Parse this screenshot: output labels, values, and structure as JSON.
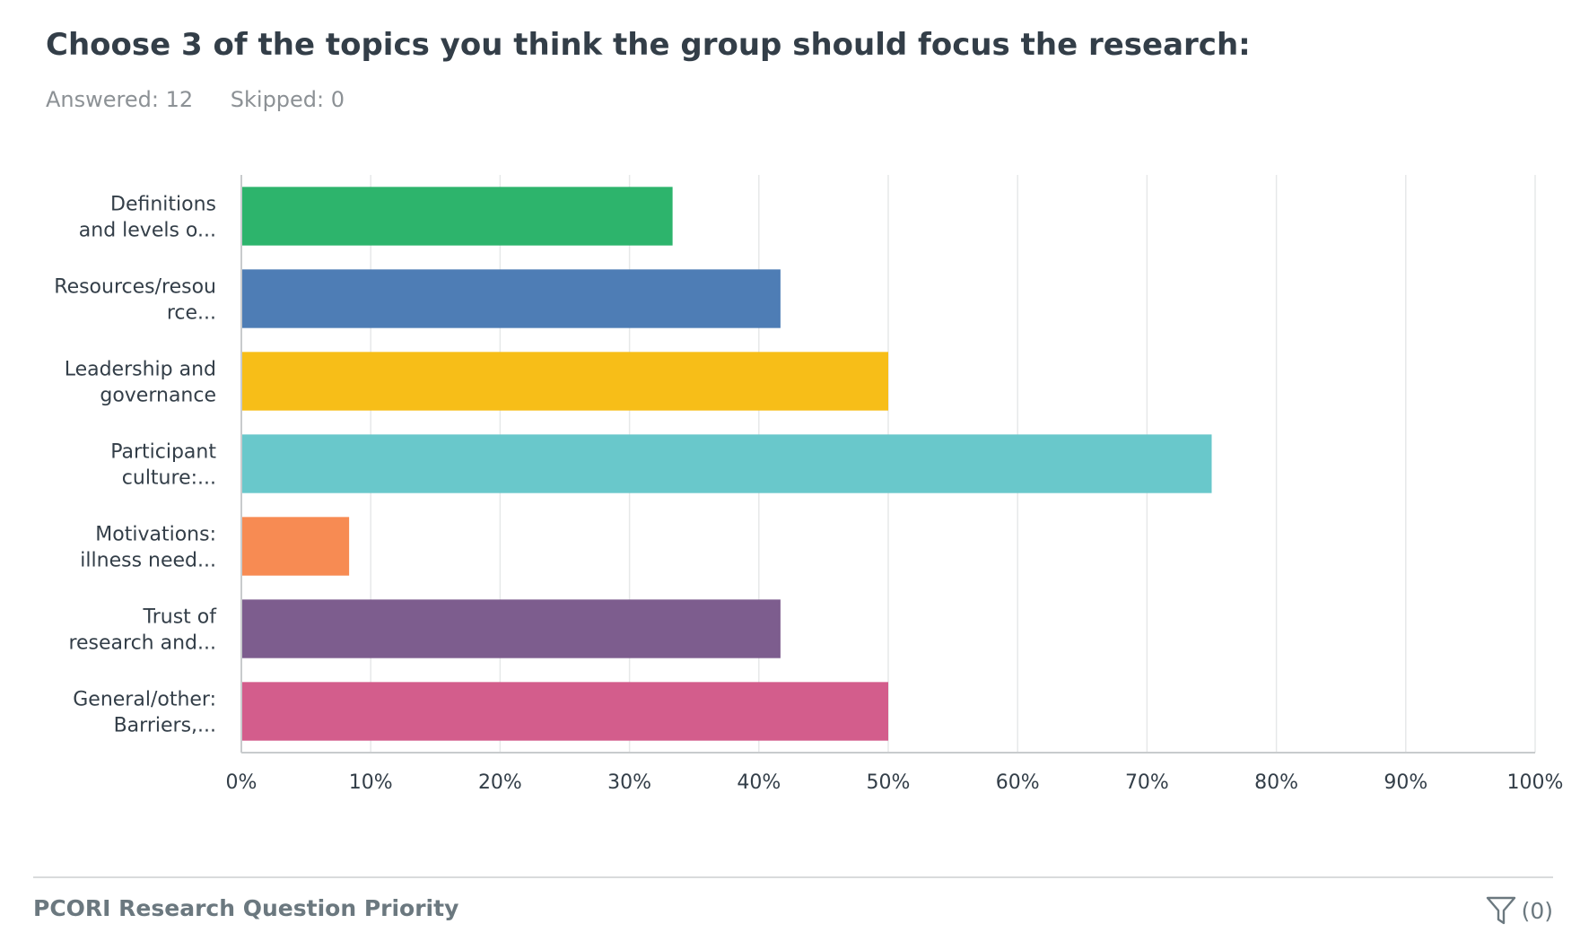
{
  "question": {
    "title": "Choose 3 of the topics you think the group should focus the research:",
    "answered": "Answered: 12",
    "skipped": "Skipped: 0"
  },
  "footer": {
    "survey_title": "PCORI Research Question Priority",
    "filter_icon": "filter-icon",
    "filter_count": "(0)"
  },
  "chart_data": {
    "type": "bar",
    "orientation": "horizontal",
    "categories": [
      [
        "Definitions",
        "and levels o..."
      ],
      [
        "Resources/resou",
        "rce..."
      ],
      [
        "Leadership and",
        "governance"
      ],
      [
        "Participant",
        "culture:..."
      ],
      [
        "Motivations:",
        "illness need..."
      ],
      [
        "Trust of",
        "research and..."
      ],
      [
        "General/other:",
        "Barriers,..."
      ]
    ],
    "values": [
      33.33,
      41.67,
      50.0,
      75.0,
      8.33,
      41.67,
      50.0
    ],
    "colors": [
      "#2db46c",
      "#4e7db5",
      "#f7be18",
      "#69c8cb",
      "#f78b53",
      "#7d5d8e",
      "#d35d8c"
    ],
    "xlim": [
      0,
      100
    ],
    "xticks": [
      "0%",
      "10%",
      "20%",
      "30%",
      "40%",
      "50%",
      "60%",
      "70%",
      "80%",
      "90%",
      "100%"
    ],
    "grid": true,
    "title": "",
    "xlabel": "",
    "ylabel": ""
  }
}
